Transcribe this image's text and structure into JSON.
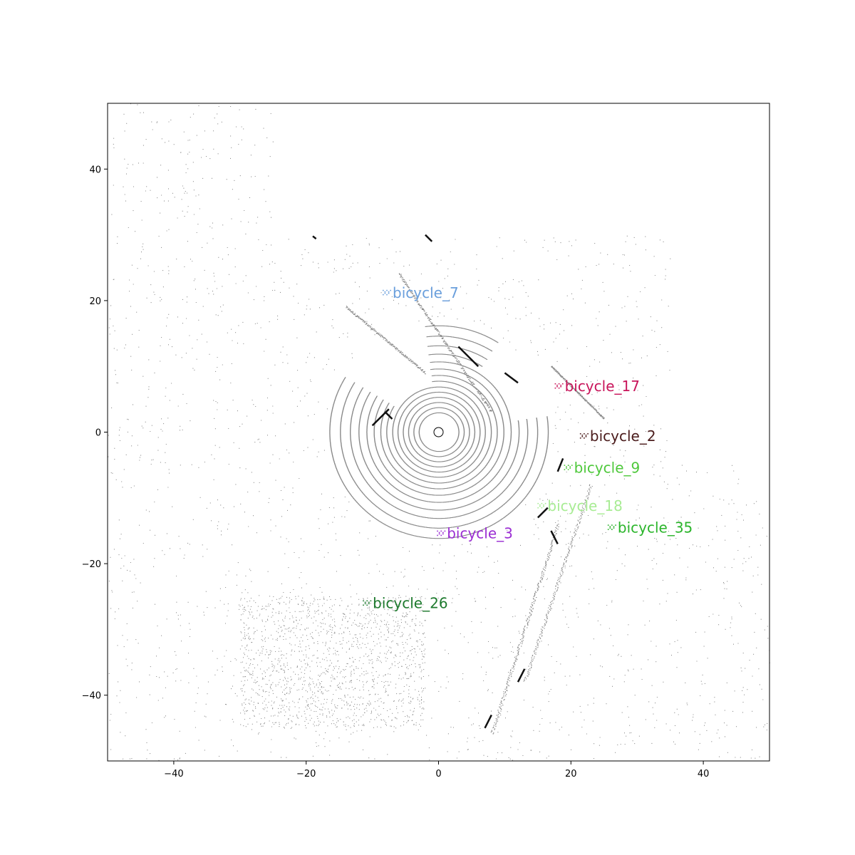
{
  "chart_data": {
    "type": "scatter",
    "xlim": [
      -50,
      50
    ],
    "ylim": [
      -50,
      50
    ],
    "x_ticks": [
      -40,
      -20,
      0,
      20,
      40
    ],
    "y_ticks": [
      -40,
      -20,
      0,
      20,
      40
    ],
    "x_tick_labels": [
      "−40",
      "−20",
      "0",
      "20",
      "40"
    ],
    "y_tick_labels": [
      "−40",
      "−20",
      "0",
      "20",
      "40"
    ],
    "grid": false,
    "ego": {
      "x": 0,
      "y": 0
    },
    "objects": [
      {
        "label": "bicycle_7",
        "x": -7.8,
        "y": 21.2,
        "color": "#6a9fdc"
      },
      {
        "label": "bicycle_17",
        "x": 18.2,
        "y": 7.0,
        "color": "#c8145a"
      },
      {
        "label": "bicycle_2",
        "x": 22.0,
        "y": -0.6,
        "color": "#4a1b1b"
      },
      {
        "label": "bicycle_9",
        "x": 19.6,
        "y": -5.4,
        "color": "#4fc83c"
      },
      {
        "label": "bicycle_18",
        "x": 15.6,
        "y": -11.2,
        "color": "#a8ec94"
      },
      {
        "label": "bicycle_35",
        "x": 26.2,
        "y": -14.5,
        "color": "#2bb52b"
      },
      {
        "label": "bicycle_3",
        "x": 0.4,
        "y": -15.4,
        "color": "#9b2fd3"
      },
      {
        "label": "bicycle_26",
        "x": -10.8,
        "y": -26.0,
        "color": "#1e7a2e"
      }
    ]
  }
}
